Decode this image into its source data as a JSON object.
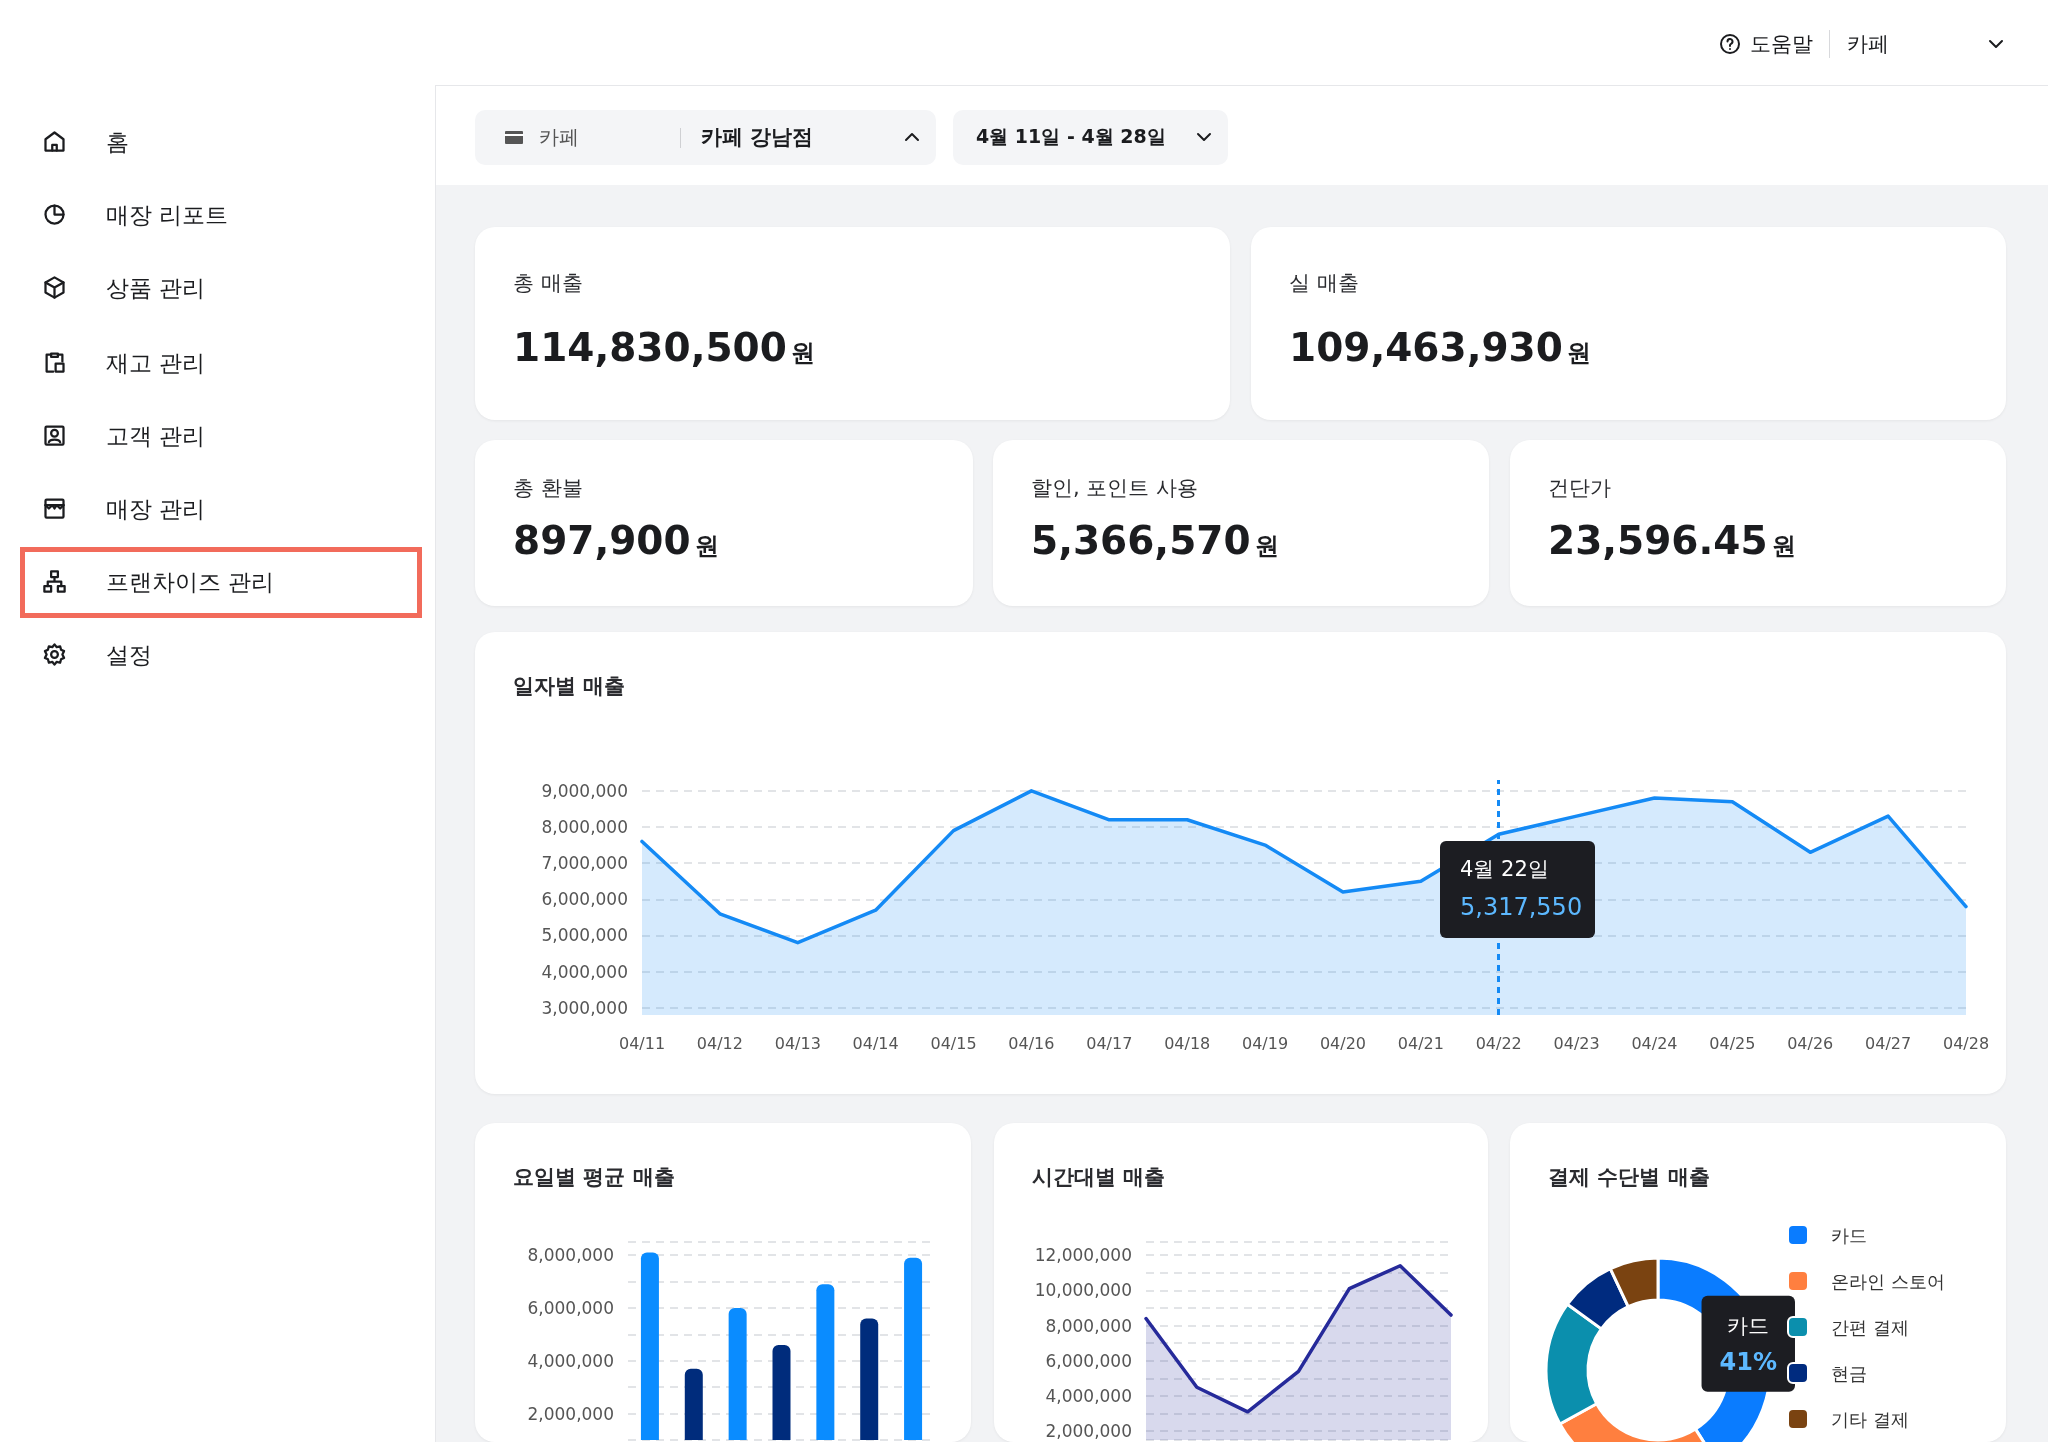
{
  "chart_data": [
    {
      "type": "other",
      "annotations": [
        "도움말",
        "카페",
        "카페",
        "카페 강남점",
        "4월 11일 - 4월 28일"
      ]
    },
    {
      "type": "other",
      "annotations": [
        "홈",
        "매장 리포트",
        "상품 관리",
        "재고 관리",
        "고객 관리",
        "매장 관리",
        "프랜차이즈 관리",
        "설정"
      ]
    },
    {
      "type": "other",
      "title": "총 매출",
      "annotations": [
        "114,830,500",
        "원"
      ]
    },
    {
      "type": "other",
      "title": "실 매출",
      "annotations": [
        "109,463,930",
        "원"
      ]
    },
    {
      "type": "other",
      "title": "총 환불",
      "annotations": [
        "897,900",
        "원"
      ]
    },
    {
      "type": "other",
      "title": "할인, 포인트 사용",
      "annotations": [
        "5,366,570",
        "원"
      ]
    },
    {
      "type": "other",
      "title": "건단가",
      "annotations": [
        "23,596.45",
        "원"
      ]
    },
    {
      "type": "area",
      "title": "일자별 매출",
      "color": "#148af5",
      "grid": "y",
      "categories": [
        "04/11",
        "04/12",
        "04/13",
        "04/14",
        "04/15",
        "04/16",
        "04/17",
        "04/18",
        "04/19",
        "04/20",
        "04/21",
        "04/22",
        "04/23",
        "04/24",
        "04/25",
        "04/26",
        "04/27",
        "04/28"
      ],
      "values": [
        7600000,
        5600000,
        4800000,
        5700000,
        7900000,
        9000000,
        8200000,
        8200000,
        7500000,
        6200000,
        6500000,
        7800000,
        8300000,
        8800000,
        8700000,
        7300000,
        8300000,
        5800000
      ],
      "ylim": [
        2800000,
        9300000
      ],
      "yticks": [
        {
          "value": 3000000,
          "label": "3,000,000"
        },
        {
          "value": 4000000,
          "label": "4,000,000"
        },
        {
          "value": 5000000,
          "label": "5,000,000"
        },
        {
          "value": 6000000,
          "label": "6,000,000"
        },
        {
          "value": 7000000,
          "label": "7,000,000"
        },
        {
          "value": 8000000,
          "label": "8,000,000"
        },
        {
          "value": 9000000,
          "label": "9,000,000"
        }
      ],
      "ref_lines": [
        {
          "axis": "x",
          "value": "04/22",
          "color": "#148af5",
          "line_style": "dashed"
        }
      ],
      "annotations": [
        "4월 22일",
        "5,317,550"
      ]
    },
    {
      "type": "bar",
      "title": "요일별 평균 매출",
      "grid": "y",
      "tick_labels": "y",
      "categories": [
        null,
        null,
        null,
        null,
        null,
        null,
        null
      ],
      "values": [
        8100000,
        3700000,
        6000000,
        4600000,
        6900000,
        5600000,
        7900000
      ],
      "colors": [
        "#0a8cff",
        "#002c7c",
        "#0a8cff",
        "#002c7c",
        "#0a8cff",
        "#002c7c",
        "#0a8cff"
      ],
      "ylim": [
        1000000,
        8500000
      ],
      "yticks": [
        {
          "value": 8500000,
          "label": null
        },
        {
          "value": 1000000,
          "label": null
        },
        {
          "value": 2000000,
          "label": "2,000,000"
        },
        {
          "value": 3000000,
          "label": null
        },
        {
          "value": 4000000,
          "label": "4,000,000"
        },
        {
          "value": 5000000,
          "label": null
        },
        {
          "value": 6000000,
          "label": "6,000,000"
        },
        {
          "value": 7000000,
          "label": null
        },
        {
          "value": 8000000,
          "label": "8,000,000"
        }
      ]
    },
    {
      "type": "area",
      "title": "시간대별 매출",
      "color": "#262a9a",
      "grid": "y",
      "tick_labels": "y",
      "categories": [
        null,
        null,
        null,
        null,
        null,
        null,
        null
      ],
      "values": [
        8400000,
        4500000,
        3100000,
        5400000,
        10100000,
        11400000,
        8600000
      ],
      "ylim": [
        1500000,
        12750000
      ],
      "yticks": [
        {
          "value": 1500000,
          "label": null
        },
        {
          "value": 12750000,
          "label": null
        },
        {
          "value": 2000000,
          "label": "2,000,000"
        },
        {
          "value": 3000000,
          "label": null
        },
        {
          "value": 4000000,
          "label": "4,000,000"
        },
        {
          "value": 5000000,
          "label": null
        },
        {
          "value": 6000000,
          "label": "6,000,000"
        },
        {
          "value": 7000000,
          "label": null
        },
        {
          "value": 8000000,
          "label": "8,000,000"
        },
        {
          "value": 9000000,
          "label": null
        },
        {
          "value": 10000000,
          "label": "10,000,000"
        },
        {
          "value": 11000000,
          "label": null
        },
        {
          "value": 12000000,
          "label": "12,000,000"
        }
      ]
    },
    {
      "type": "donut",
      "title": "결제 수단별 매출",
      "legend": "right",
      "categories": [
        "카드",
        "온라인 스토어",
        "간편 결제",
        "현금",
        "기타 결제"
      ],
      "values": [
        41,
        26,
        18,
        8,
        7
      ],
      "colors": [
        "#0a7cff",
        "#ff7f3f",
        "#0b8fad",
        "#002b7f",
        "#7a4311"
      ],
      "value_labels": [
        "41%",
        null,
        null,
        null,
        null
      ]
    }
  ]
}
